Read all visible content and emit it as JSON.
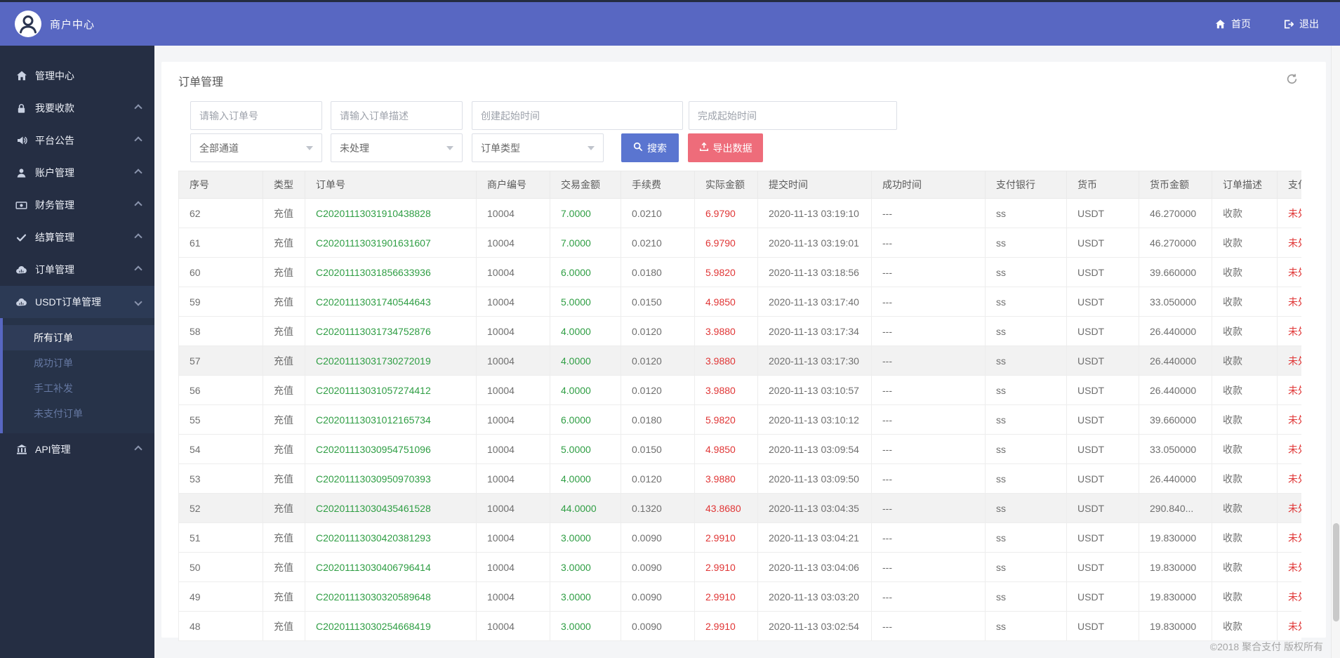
{
  "topbar": {
    "brand": "商户中心",
    "nav": [
      {
        "key": "home",
        "label": "首页",
        "icon": "home-icon"
      },
      {
        "key": "logout",
        "label": "退出",
        "icon": "logout-icon"
      }
    ]
  },
  "sidebar": {
    "items": [
      {
        "key": "admin-center",
        "label": "管理中心",
        "icon": "home",
        "chevron": "none"
      },
      {
        "key": "collect",
        "label": "我要收款",
        "icon": "collect",
        "chevron": "left"
      },
      {
        "key": "announcement",
        "label": "平台公告",
        "icon": "announce",
        "chevron": "left"
      },
      {
        "key": "account",
        "label": "账户管理",
        "icon": "user",
        "chevron": "left"
      },
      {
        "key": "finance",
        "label": "财务管理",
        "icon": "finance",
        "chevron": "left"
      },
      {
        "key": "settlement",
        "label": "结算管理",
        "icon": "check",
        "chevron": "left"
      },
      {
        "key": "orders",
        "label": "订单管理",
        "icon": "cloud",
        "chevron": "left"
      },
      {
        "key": "usdt-orders",
        "label": "USDT订单管理",
        "icon": "cloud",
        "chevron": "down",
        "expanded": true,
        "children": [
          {
            "key": "all-orders",
            "label": "所有订单",
            "active": true
          },
          {
            "key": "success-orders",
            "label": "成功订单",
            "active": false
          },
          {
            "key": "manual-reissue",
            "label": "手工补发",
            "active": false
          },
          {
            "key": "unpaid-orders",
            "label": "未支付订单",
            "active": false
          }
        ]
      },
      {
        "key": "api",
        "label": "API管理",
        "icon": "bank",
        "chevron": "left"
      }
    ]
  },
  "page": {
    "title": "订单管理"
  },
  "filters": {
    "inputs": [
      {
        "key": "order-no",
        "placeholder": "请输入订单号"
      },
      {
        "key": "order-desc",
        "placeholder": "请输入订单描述"
      },
      {
        "key": "create-time",
        "placeholder": "创建起始时间"
      },
      {
        "key": "finish-time",
        "placeholder": "完成起始时间"
      }
    ],
    "selects": [
      {
        "key": "channel",
        "value": "全部通道"
      },
      {
        "key": "status",
        "value": "未处理"
      },
      {
        "key": "order-type",
        "value": "订单类型"
      }
    ],
    "search_label": "搜索",
    "export_label": "导出数据"
  },
  "table": {
    "columns": [
      {
        "key": "seq",
        "label": "序号"
      },
      {
        "key": "type",
        "label": "类型"
      },
      {
        "key": "order_no",
        "label": "订单号"
      },
      {
        "key": "merchant_no",
        "label": "商户编号"
      },
      {
        "key": "trade_amount",
        "label": "交易金额"
      },
      {
        "key": "fee",
        "label": "手续费"
      },
      {
        "key": "actual_amount",
        "label": "实际金额"
      },
      {
        "key": "submit_time",
        "label": "提交时间"
      },
      {
        "key": "success_time",
        "label": "成功时间"
      },
      {
        "key": "bank",
        "label": "支付银行"
      },
      {
        "key": "currency",
        "label": "货币"
      },
      {
        "key": "currency_amount",
        "label": "货币金额"
      },
      {
        "key": "order_desc",
        "label": "订单描述"
      },
      {
        "key": "status",
        "label": "支付状态"
      }
    ],
    "rows": [
      {
        "seq": "62",
        "type": "充值",
        "order_no": "C20201113031910438828",
        "merchant_no": "10004",
        "trade_amount": "7.0000",
        "fee": "0.0210",
        "actual_amount": "6.9790",
        "submit_time": "2020-11-13 03:19:10",
        "success_time": "---",
        "bank": "ss",
        "currency": "USDT",
        "currency_amount": "46.270000",
        "order_desc": "收款",
        "status": "未处理",
        "highlighted": false
      },
      {
        "seq": "61",
        "type": "充值",
        "order_no": "C20201113031901631607",
        "merchant_no": "10004",
        "trade_amount": "7.0000",
        "fee": "0.0210",
        "actual_amount": "6.9790",
        "submit_time": "2020-11-13 03:19:01",
        "success_time": "---",
        "bank": "ss",
        "currency": "USDT",
        "currency_amount": "46.270000",
        "order_desc": "收款",
        "status": "未处理",
        "highlighted": false
      },
      {
        "seq": "60",
        "type": "充值",
        "order_no": "C20201113031856633936",
        "merchant_no": "10004",
        "trade_amount": "6.0000",
        "fee": "0.0180",
        "actual_amount": "5.9820",
        "submit_time": "2020-11-13 03:18:56",
        "success_time": "---",
        "bank": "ss",
        "currency": "USDT",
        "currency_amount": "39.660000",
        "order_desc": "收款",
        "status": "未处理",
        "highlighted": false
      },
      {
        "seq": "59",
        "type": "充值",
        "order_no": "C20201113031740544643",
        "merchant_no": "10004",
        "trade_amount": "5.0000",
        "fee": "0.0150",
        "actual_amount": "4.9850",
        "submit_time": "2020-11-13 03:17:40",
        "success_time": "---",
        "bank": "ss",
        "currency": "USDT",
        "currency_amount": "33.050000",
        "order_desc": "收款",
        "status": "未处理",
        "highlighted": false
      },
      {
        "seq": "58",
        "type": "充值",
        "order_no": "C20201113031734752876",
        "merchant_no": "10004",
        "trade_amount": "4.0000",
        "fee": "0.0120",
        "actual_amount": "3.9880",
        "submit_time": "2020-11-13 03:17:34",
        "success_time": "---",
        "bank": "ss",
        "currency": "USDT",
        "currency_amount": "26.440000",
        "order_desc": "收款",
        "status": "未处理",
        "highlighted": false
      },
      {
        "seq": "57",
        "type": "充值",
        "order_no": "C20201113031730272019",
        "merchant_no": "10004",
        "trade_amount": "4.0000",
        "fee": "0.0120",
        "actual_amount": "3.9880",
        "submit_time": "2020-11-13 03:17:30",
        "success_time": "---",
        "bank": "ss",
        "currency": "USDT",
        "currency_amount": "26.440000",
        "order_desc": "收款",
        "status": "未处理",
        "highlighted": true
      },
      {
        "seq": "56",
        "type": "充值",
        "order_no": "C20201113031057274412",
        "merchant_no": "10004",
        "trade_amount": "4.0000",
        "fee": "0.0120",
        "actual_amount": "3.9880",
        "submit_time": "2020-11-13 03:10:57",
        "success_time": "---",
        "bank": "ss",
        "currency": "USDT",
        "currency_amount": "26.440000",
        "order_desc": "收款",
        "status": "未处理",
        "highlighted": false
      },
      {
        "seq": "55",
        "type": "充值",
        "order_no": "C20201113031012165734",
        "merchant_no": "10004",
        "trade_amount": "6.0000",
        "fee": "0.0180",
        "actual_amount": "5.9820",
        "submit_time": "2020-11-13 03:10:12",
        "success_time": "---",
        "bank": "ss",
        "currency": "USDT",
        "currency_amount": "39.660000",
        "order_desc": "收款",
        "status": "未处理",
        "highlighted": false
      },
      {
        "seq": "54",
        "type": "充值",
        "order_no": "C20201113030954751096",
        "merchant_no": "10004",
        "trade_amount": "5.0000",
        "fee": "0.0150",
        "actual_amount": "4.9850",
        "submit_time": "2020-11-13 03:09:54",
        "success_time": "---",
        "bank": "ss",
        "currency": "USDT",
        "currency_amount": "33.050000",
        "order_desc": "收款",
        "status": "未处理",
        "highlighted": false
      },
      {
        "seq": "53",
        "type": "充值",
        "order_no": "C20201113030950970393",
        "merchant_no": "10004",
        "trade_amount": "4.0000",
        "fee": "0.0120",
        "actual_amount": "3.9880",
        "submit_time": "2020-11-13 03:09:50",
        "success_time": "---",
        "bank": "ss",
        "currency": "USDT",
        "currency_amount": "26.440000",
        "order_desc": "收款",
        "status": "未处理",
        "highlighted": false
      },
      {
        "seq": "52",
        "type": "充值",
        "order_no": "C20201113030435461528",
        "merchant_no": "10004",
        "trade_amount": "44.0000",
        "fee": "0.1320",
        "actual_amount": "43.8680",
        "submit_time": "2020-11-13 03:04:35",
        "success_time": "---",
        "bank": "ss",
        "currency": "USDT",
        "currency_amount": "290.840...",
        "order_desc": "收款",
        "status": "未处理",
        "highlighted": true
      },
      {
        "seq": "51",
        "type": "充值",
        "order_no": "C20201113030420381293",
        "merchant_no": "10004",
        "trade_amount": "3.0000",
        "fee": "0.0090",
        "actual_amount": "2.9910",
        "submit_time": "2020-11-13 03:04:21",
        "success_time": "---",
        "bank": "ss",
        "currency": "USDT",
        "currency_amount": "19.830000",
        "order_desc": "收款",
        "status": "未处理",
        "highlighted": false
      },
      {
        "seq": "50",
        "type": "充值",
        "order_no": "C20201113030406796414",
        "merchant_no": "10004",
        "trade_amount": "3.0000",
        "fee": "0.0090",
        "actual_amount": "2.9910",
        "submit_time": "2020-11-13 03:04:06",
        "success_time": "---",
        "bank": "ss",
        "currency": "USDT",
        "currency_amount": "19.830000",
        "order_desc": "收款",
        "status": "未处理",
        "highlighted": false
      },
      {
        "seq": "49",
        "type": "充值",
        "order_no": "C20201113030320589648",
        "merchant_no": "10004",
        "trade_amount": "3.0000",
        "fee": "0.0090",
        "actual_amount": "2.9910",
        "submit_time": "2020-11-13 03:03:20",
        "success_time": "---",
        "bank": "ss",
        "currency": "USDT",
        "currency_amount": "19.830000",
        "order_desc": "收款",
        "status": "未处理",
        "highlighted": false
      },
      {
        "seq": "48",
        "type": "充值",
        "order_no": "C20201113030254668419",
        "merchant_no": "10004",
        "trade_amount": "3.0000",
        "fee": "0.0090",
        "actual_amount": "2.9910",
        "submit_time": "2020-11-13 03:02:54",
        "success_time": "---",
        "bank": "ss",
        "currency": "USDT",
        "currency_amount": "19.830000",
        "order_desc": "收款",
        "status": "未处理",
        "highlighted": false
      }
    ]
  },
  "footer": {
    "copyright": "©2018 聚合支付 版权所有"
  },
  "colors": {
    "accent": "#5867c2",
    "sidebar": "#252e43",
    "green": "#2f9e44",
    "red": "#e03636",
    "search_btn": "#5a75d0",
    "export_btn": "#ee6c7a"
  }
}
